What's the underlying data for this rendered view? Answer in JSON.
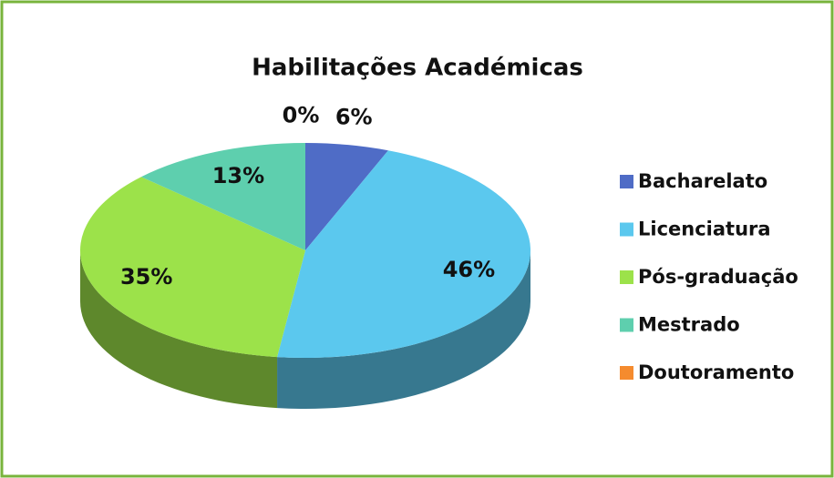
{
  "chart_data": {
    "type": "pie3d",
    "title": "Habilitações Académicas",
    "categories": [
      "Bacharelato",
      "Licenciatura",
      "Pós-graduação",
      "Mestrado",
      "Doutoramento"
    ],
    "values": [
      6,
      46,
      35,
      13,
      0
    ],
    "value_labels": [
      "6%",
      "46%",
      "35%",
      "13%",
      "0%"
    ],
    "colors": [
      "#4f6cc6",
      "#5bc8ee",
      "#9ce24a",
      "#5ecfae",
      "#f58b2e"
    ],
    "legend": "right"
  }
}
